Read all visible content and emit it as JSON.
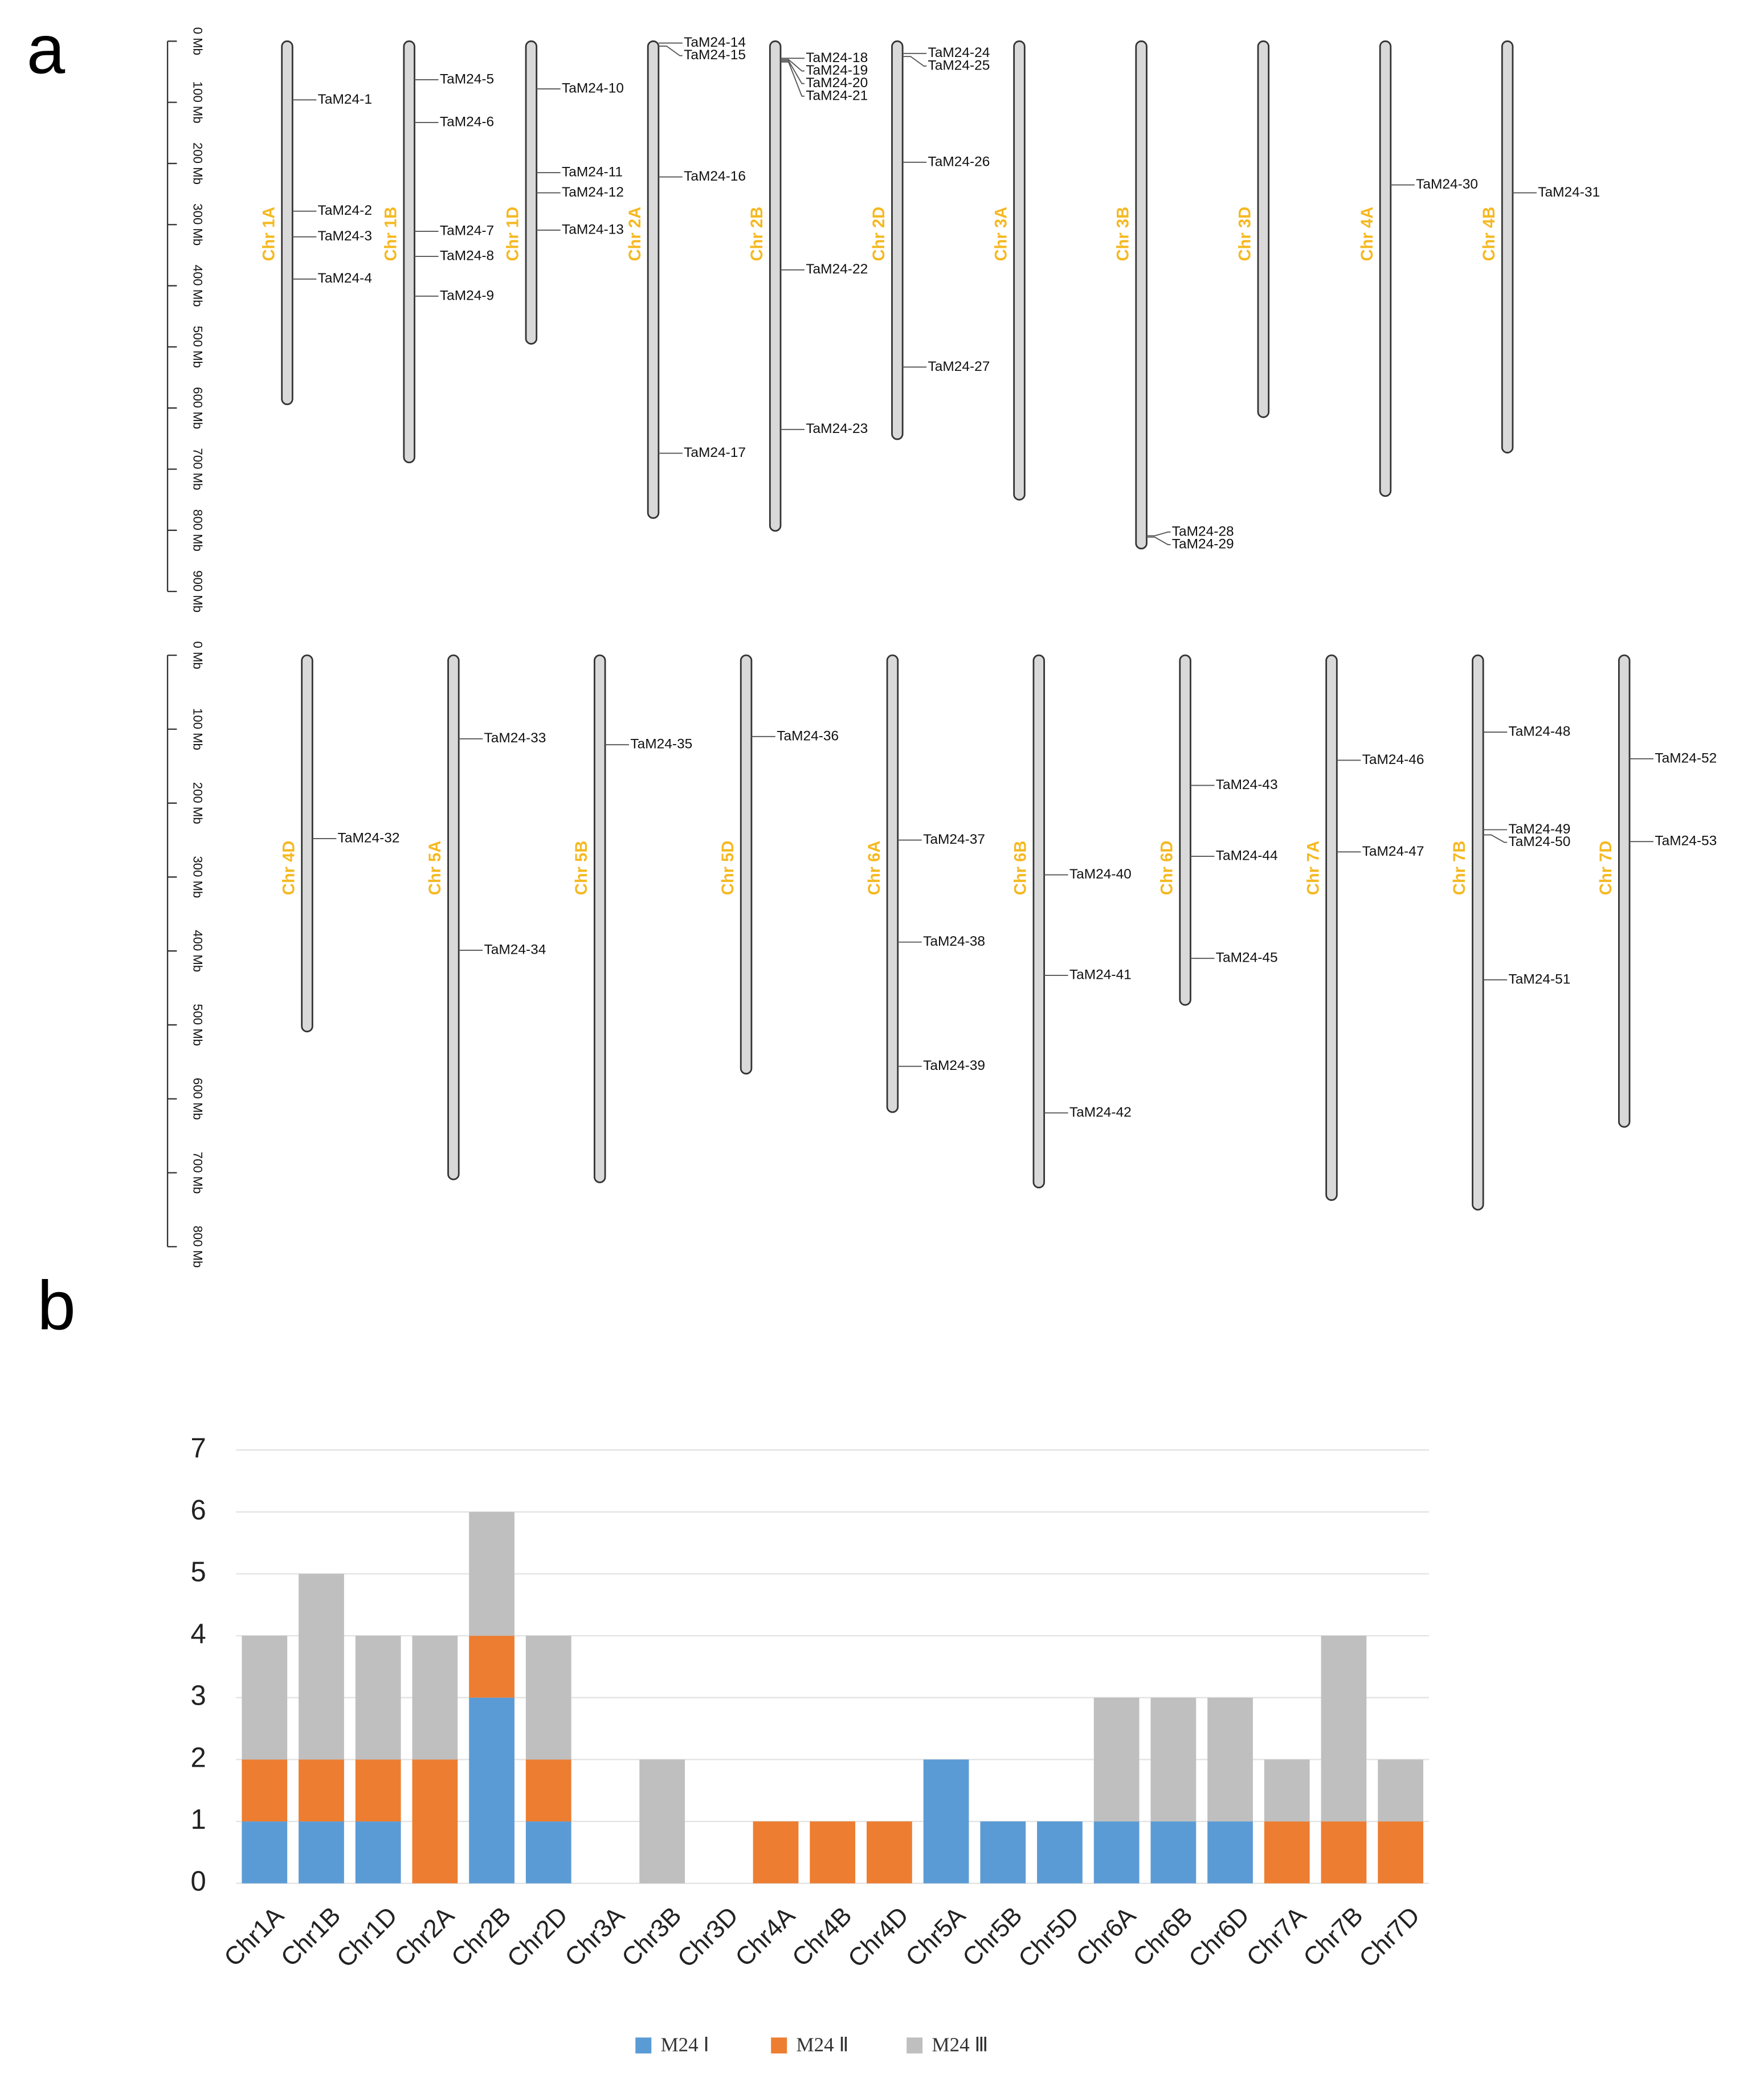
{
  "chart_data": [
    {
      "type": "chromosome_map",
      "panel_label": "a",
      "rows": [
        {
          "ylim": [
            0,
            900
          ],
          "yticks": [
            {
              "value": 0,
              "label": "0 Mb"
            },
            {
              "value": 100,
              "label": "100 Mb"
            },
            {
              "value": 200,
              "label": "200 Mb"
            },
            {
              "value": 300,
              "label": "300 Mb"
            },
            {
              "value": 400,
              "label": "400 Mb"
            },
            {
              "value": 500,
              "label": "500 Mb"
            },
            {
              "value": 600,
              "label": "600 Mb"
            },
            {
              "value": 700,
              "label": "700 Mb"
            },
            {
              "value": 800,
              "label": "800 Mb"
            },
            {
              "value": 900,
              "label": "900 Mb"
            }
          ],
          "chromosomes": [
            {
              "name": "Chr 1A",
              "length": 594,
              "genes": [
                {
                  "name": "TaM24-1",
                  "position": 96
                },
                {
                  "name": "TaM24-2",
                  "position": 278
                },
                {
                  "name": "TaM24-3",
                  "position": 320
                },
                {
                  "name": "TaM24-4",
                  "position": 389
                }
              ]
            },
            {
              "name": "Chr 1B",
              "length": 689,
              "genes": [
                {
                  "name": "TaM24-5",
                  "position": 63
                },
                {
                  "name": "TaM24-6",
                  "position": 133
                },
                {
                  "name": "TaM24-7",
                  "position": 311
                },
                {
                  "name": "TaM24-8",
                  "position": 352
                },
                {
                  "name": "TaM24-9",
                  "position": 417
                }
              ]
            },
            {
              "name": "Chr 1D",
              "length": 495,
              "genes": [
                {
                  "name": "TaM24-10",
                  "position": 78
                },
                {
                  "name": "TaM24-11",
                  "position": 215
                },
                {
                  "name": "TaM24-12",
                  "position": 248
                },
                {
                  "name": "TaM24-13",
                  "position": 309
                }
              ]
            },
            {
              "name": "Chr 2A",
              "length": 780,
              "genes": [
                {
                  "name": "TaM24-14",
                  "position": 3
                },
                {
                  "name": "TaM24-15",
                  "position": 8
                },
                {
                  "name": "TaM24-16",
                  "position": 222
                },
                {
                  "name": "TaM24-17",
                  "position": 674
                }
              ]
            },
            {
              "name": "Chr 2B",
              "length": 801,
              "genes": [
                {
                  "name": "TaM24-18",
                  "position": 28
                },
                {
                  "name": "TaM24-19",
                  "position": 30
                },
                {
                  "name": "TaM24-20",
                  "position": 32
                },
                {
                  "name": "TaM24-21",
                  "position": 34
                },
                {
                  "name": "TaM24-22",
                  "position": 374
                },
                {
                  "name": "TaM24-23",
                  "position": 635
                }
              ]
            },
            {
              "name": "Chr 2D",
              "length": 651,
              "genes": [
                {
                  "name": "TaM24-24",
                  "position": 20
                },
                {
                  "name": "TaM24-25",
                  "position": 25
                },
                {
                  "name": "TaM24-26",
                  "position": 198
                },
                {
                  "name": "TaM24-27",
                  "position": 533
                }
              ]
            },
            {
              "name": "Chr 3A",
              "length": 750,
              "genes": []
            },
            {
              "name": "Chr 3B",
              "length": 830,
              "genes": [
                {
                  "name": "TaM24-28",
                  "position": 809
                },
                {
                  "name": "TaM24-29",
                  "position": 811
                }
              ]
            },
            {
              "name": "Chr 3D",
              "length": 615,
              "genes": []
            },
            {
              "name": "Chr 4A",
              "length": 744,
              "genes": [
                {
                  "name": "TaM24-30",
                  "position": 235
                }
              ]
            },
            {
              "name": "Chr 4B",
              "length": 673,
              "genes": [
                {
                  "name": "TaM24-31",
                  "position": 248
                }
              ]
            }
          ]
        },
        {
          "ylim": [
            0,
            800
          ],
          "yticks": [
            {
              "value": 0,
              "label": "0 Mb"
            },
            {
              "value": 100,
              "label": "100 Mb"
            },
            {
              "value": 200,
              "label": "200 Mb"
            },
            {
              "value": 300,
              "label": "300 Mb"
            },
            {
              "value": 400,
              "label": "400 Mb"
            },
            {
              "value": 500,
              "label": "500 Mb"
            },
            {
              "value": 600,
              "label": "600 Mb"
            },
            {
              "value": 700,
              "label": "700 Mb"
            },
            {
              "value": 800,
              "label": "800 Mb"
            }
          ],
          "chromosomes": [
            {
              "name": "Chr 4D",
              "length": 509,
              "genes": [
                {
                  "name": "TaM24-32",
                  "position": 248
                }
              ]
            },
            {
              "name": "Chr 5A",
              "length": 709,
              "genes": [
                {
                  "name": "TaM24-33",
                  "position": 113
                },
                {
                  "name": "TaM24-34",
                  "position": 399
                }
              ]
            },
            {
              "name": "Chr 5B",
              "length": 713,
              "genes": [
                {
                  "name": "TaM24-35",
                  "position": 121
                }
              ]
            },
            {
              "name": "Chr 5D",
              "length": 566,
              "genes": [
                {
                  "name": "TaM24-36",
                  "position": 110
                }
              ]
            },
            {
              "name": "Chr 6A",
              "length": 618,
              "genes": [
                {
                  "name": "TaM24-37",
                  "position": 250
                },
                {
                  "name": "TaM24-38",
                  "position": 388
                },
                {
                  "name": "TaM24-39",
                  "position": 556
                }
              ]
            },
            {
              "name": "Chr 6B",
              "length": 720,
              "genes": [
                {
                  "name": "TaM24-40",
                  "position": 297
                },
                {
                  "name": "TaM24-41",
                  "position": 433
                },
                {
                  "name": "TaM24-42",
                  "position": 619
                }
              ]
            },
            {
              "name": "Chr 6D",
              "length": 473,
              "genes": [
                {
                  "name": "TaM24-43",
                  "position": 176
                },
                {
                  "name": "TaM24-44",
                  "position": 272
                },
                {
                  "name": "TaM24-45",
                  "position": 410
                }
              ]
            },
            {
              "name": "Chr 7A",
              "length": 737,
              "genes": [
                {
                  "name": "TaM24-46",
                  "position": 142
                },
                {
                  "name": "TaM24-47",
                  "position": 266
                }
              ]
            },
            {
              "name": "Chr 7B",
              "length": 750,
              "genes": [
                {
                  "name": "TaM24-48",
                  "position": 104
                },
                {
                  "name": "TaM24-49",
                  "position": 236
                },
                {
                  "name": "TaM24-50",
                  "position": 243
                },
                {
                  "name": "TaM24-51",
                  "position": 439
                }
              ]
            },
            {
              "name": "Chr 7D",
              "length": 638,
              "genes": [
                {
                  "name": "TaM24-52",
                  "position": 140
                },
                {
                  "name": "TaM24-53",
                  "position": 252
                }
              ]
            }
          ]
        }
      ]
    },
    {
      "type": "stacked_bar",
      "panel_label": "b",
      "categories": [
        "Chr1A",
        "Chr1B",
        "Chr1D",
        "Chr2A",
        "Chr2B",
        "Chr2D",
        "Chr3A",
        "Chr3B",
        "Chr3D",
        "Chr4A",
        "Chr4B",
        "Chr4D",
        "Chr5A",
        "Chr5B",
        "Chr5D",
        "Chr6A",
        "Chr6B",
        "Chr6D",
        "Chr7A",
        "Chr7B",
        "Chr7D"
      ],
      "series": [
        {
          "name": "M24 Ⅰ",
          "color": "#5b9bd5",
          "values": [
            1,
            1,
            1,
            0,
            3,
            1,
            0,
            0,
            0,
            0,
            0,
            0,
            2,
            1,
            1,
            1,
            1,
            1,
            0,
            0,
            0
          ]
        },
        {
          "name": "M24 Ⅱ",
          "color": "#ed7d31",
          "values": [
            1,
            1,
            1,
            2,
            1,
            1,
            0,
            0,
            0,
            1,
            1,
            1,
            0,
            0,
            0,
            0,
            0,
            0,
            1,
            1,
            1
          ]
        },
        {
          "name": "M24 Ⅲ",
          "color": "#bfbfbf",
          "values": [
            2,
            3,
            2,
            2,
            2,
            2,
            0,
            2,
            0,
            0,
            0,
            0,
            0,
            0,
            0,
            2,
            2,
            2,
            1,
            3,
            1
          ]
        }
      ],
      "ylim": [
        0,
        7
      ],
      "yticks": [
        0,
        1,
        2,
        3,
        4,
        5,
        6,
        7
      ],
      "grid": true,
      "legend": "bottom"
    }
  ]
}
